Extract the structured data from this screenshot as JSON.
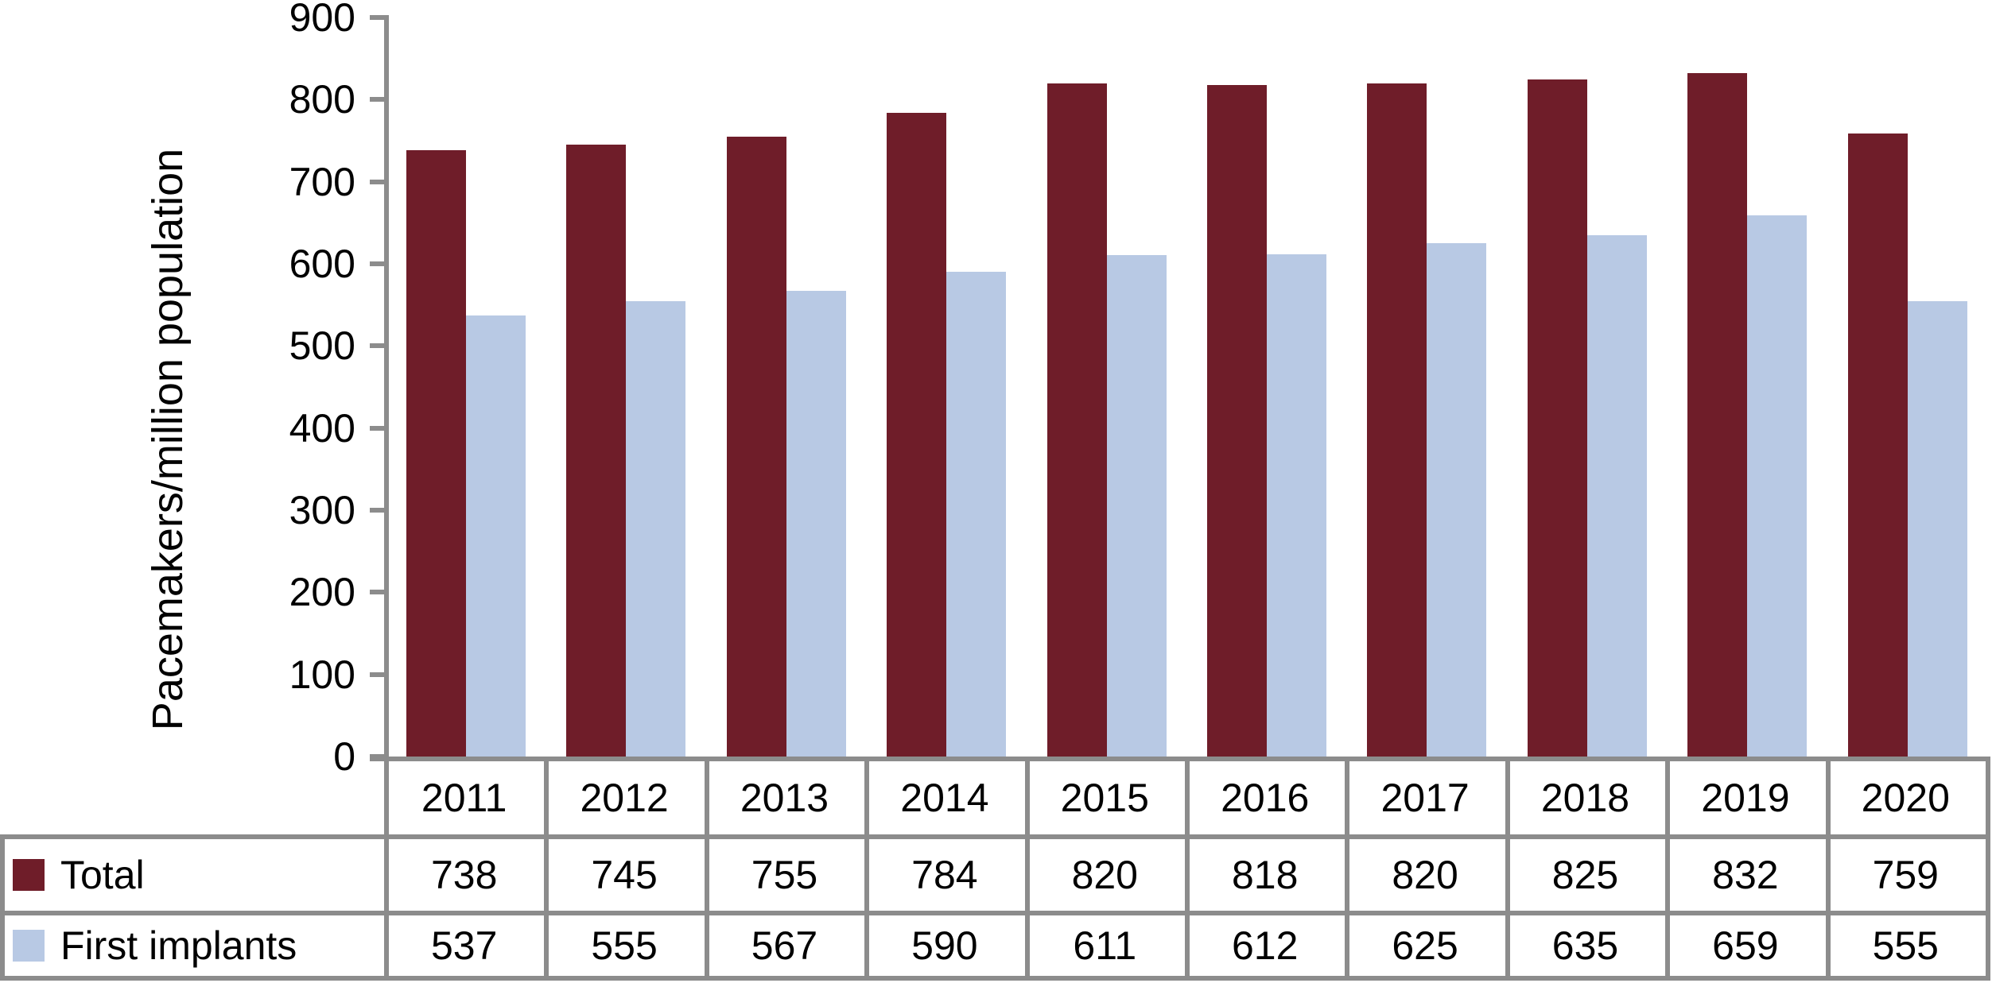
{
  "chart_data": {
    "type": "bar",
    "title": "",
    "ylabel": "Pacemakers/million population",
    "xlabel": "",
    "categories": [
      "2011",
      "2012",
      "2013",
      "2014",
      "2015",
      "2016",
      "2017",
      "2018",
      "2019",
      "2020"
    ],
    "series": [
      {
        "name": "Total",
        "color": "#6F1D29",
        "values": [
          738,
          745,
          755,
          784,
          820,
          818,
          820,
          825,
          832,
          759
        ]
      },
      {
        "name": "First implants",
        "color": "#B8C9E4",
        "values": [
          537,
          555,
          567,
          590,
          611,
          612,
          625,
          635,
          659,
          555
        ]
      }
    ],
    "ylim": [
      0,
      900
    ],
    "yticks": [
      0,
      100,
      200,
      300,
      400,
      500,
      600,
      700,
      800,
      900
    ],
    "grid": false,
    "legend_position": "table-left",
    "axis_color": "#8C8C8C",
    "text_color": "#000000"
  }
}
